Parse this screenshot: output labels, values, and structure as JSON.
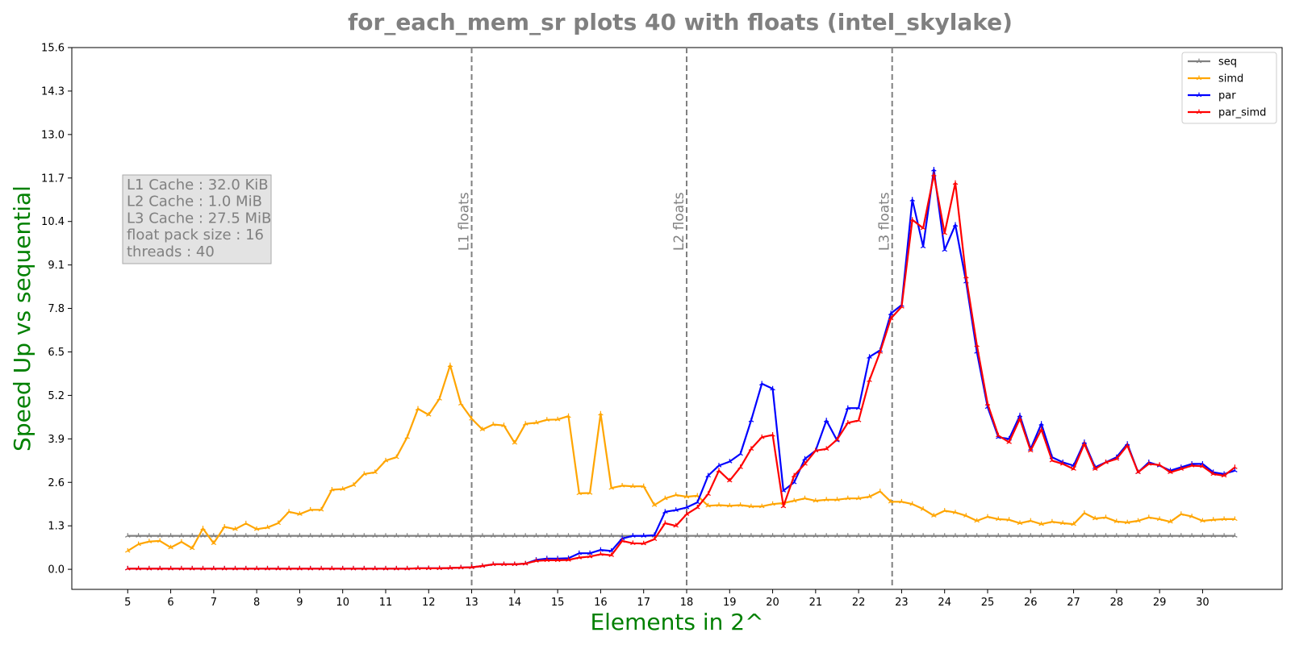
{
  "chart_data": {
    "type": "line",
    "title": "for_each_mem_sr plots 40 with floats  (intel_skylake)",
    "xlabel": "Elements in 2^",
    "ylabel": "Speed Up vs sequential",
    "xlim": [
      3.7,
      31.85
    ],
    "ylim": [
      -0.6,
      15.6
    ],
    "xticks": [
      5,
      6,
      7,
      8,
      9,
      10,
      11,
      12,
      13,
      14,
      15,
      16,
      17,
      18,
      19,
      20,
      21,
      22,
      23,
      24,
      25,
      26,
      27,
      28,
      29,
      30
    ],
    "yticks": [
      0.0,
      1.3,
      2.6,
      3.9,
      5.2,
      6.5,
      7.8,
      9.1,
      10.4,
      11.7,
      13.0,
      14.3,
      15.6
    ],
    "ytick_labels": [
      "0.0",
      "1.3",
      "2.6",
      "3.9",
      "5.2",
      "6.5",
      "7.8",
      "9.1",
      "10.4",
      "11.7",
      "13.0",
      "14.3",
      "15.6"
    ],
    "grid": false,
    "legend_position": "top-right",
    "x": [
      5.0,
      5.25,
      5.5,
      5.75,
      6.0,
      6.25,
      6.5,
      6.75,
      7.0,
      7.25,
      7.5,
      7.75,
      8.0,
      8.25,
      8.5,
      8.75,
      9.0,
      9.25,
      9.5,
      9.75,
      10.0,
      10.25,
      10.5,
      10.75,
      11.0,
      11.25,
      11.5,
      11.75,
      12.0,
      12.25,
      12.5,
      12.75,
      13.0,
      13.25,
      13.5,
      13.75,
      14.0,
      14.25,
      14.5,
      14.75,
      15.0,
      15.25,
      15.5,
      15.75,
      16.0,
      16.25,
      16.5,
      16.75,
      17.0,
      17.25,
      17.5,
      17.75,
      18.0,
      18.25,
      18.5,
      18.75,
      19.0,
      19.25,
      19.5,
      19.75,
      20.0,
      20.25,
      20.5,
      20.75,
      21.0,
      21.25,
      21.5,
      21.75,
      22.0,
      22.25,
      22.5,
      22.75,
      23.0,
      23.25,
      23.5,
      23.75,
      24.0,
      24.25,
      24.5,
      24.75,
      25.0,
      25.25,
      25.5,
      25.75,
      26.0,
      26.25,
      26.5,
      26.75,
      27.0,
      27.25,
      27.5,
      27.75,
      28.0,
      28.25,
      28.5,
      28.75,
      29.0,
      29.25,
      29.5,
      29.75,
      30.0,
      30.25,
      30.5,
      30.75
    ],
    "series": [
      {
        "name": "seq",
        "color": "#808080",
        "values": [
          1.0,
          1.0,
          1.0,
          1.0,
          1.0,
          1.0,
          1.0,
          1.0,
          1.0,
          1.0,
          1.0,
          1.0,
          1.0,
          1.0,
          1.0,
          1.0,
          1.0,
          1.0,
          1.0,
          1.0,
          1.0,
          1.0,
          1.0,
          1.0,
          1.0,
          1.0,
          1.0,
          1.0,
          1.0,
          1.0,
          1.0,
          1.0,
          1.0,
          1.0,
          1.0,
          1.0,
          1.0,
          1.0,
          1.0,
          1.0,
          1.0,
          1.0,
          1.0,
          1.0,
          1.0,
          1.0,
          1.0,
          1.0,
          1.0,
          1.0,
          1.0,
          1.0,
          1.0,
          1.0,
          1.0,
          1.0,
          1.0,
          1.0,
          1.0,
          1.0,
          1.0,
          1.0,
          1.0,
          1.0,
          1.0,
          1.0,
          1.0,
          1.0,
          1.0,
          1.0,
          1.0,
          1.0,
          1.0,
          1.0,
          1.0,
          1.0,
          1.0,
          1.0,
          1.0,
          1.0,
          1.0,
          1.0,
          1.0,
          1.0,
          1.0,
          1.0,
          1.0,
          1.0,
          1.0,
          1.0,
          1.0,
          1.0,
          1.0,
          1.0,
          1.0,
          1.0,
          1.0,
          1.0,
          1.0,
          1.0,
          1.0,
          1.0,
          1.0,
          1.0
        ]
      },
      {
        "name": "simd",
        "color": "#FFA500",
        "values": [
          0.55,
          0.75,
          0.83,
          0.85,
          0.65,
          0.82,
          0.63,
          1.22,
          0.78,
          1.27,
          1.2,
          1.37,
          1.2,
          1.25,
          1.38,
          1.72,
          1.65,
          1.78,
          1.78,
          2.38,
          2.4,
          2.52,
          2.85,
          2.9,
          3.25,
          3.35,
          3.95,
          4.8,
          4.62,
          5.1,
          6.1,
          4.95,
          4.5,
          4.18,
          4.33,
          4.3,
          3.78,
          4.35,
          4.38,
          4.47,
          4.48,
          4.58,
          2.27,
          2.28,
          4.65,
          2.43,
          2.5,
          2.48,
          2.48,
          1.92,
          2.12,
          2.22,
          2.17,
          2.2,
          1.9,
          1.92,
          1.9,
          1.92,
          1.88,
          1.88,
          1.95,
          1.98,
          2.05,
          2.12,
          2.05,
          2.08,
          2.08,
          2.12,
          2.12,
          2.17,
          2.33,
          2.02,
          2.02,
          1.95,
          1.8,
          1.6,
          1.75,
          1.7,
          1.6,
          1.45,
          1.57,
          1.5,
          1.48,
          1.38,
          1.45,
          1.35,
          1.42,
          1.38,
          1.35,
          1.68,
          1.52,
          1.55,
          1.43,
          1.4,
          1.45,
          1.55,
          1.5,
          1.42,
          1.65,
          1.58,
          1.45,
          1.48,
          1.5,
          1.5
        ]
      },
      {
        "name": "par",
        "color": "#0000FF",
        "values": [
          0.02,
          0.02,
          0.02,
          0.02,
          0.02,
          0.02,
          0.02,
          0.02,
          0.02,
          0.02,
          0.02,
          0.02,
          0.02,
          0.02,
          0.02,
          0.02,
          0.02,
          0.02,
          0.02,
          0.02,
          0.02,
          0.02,
          0.02,
          0.02,
          0.02,
          0.02,
          0.02,
          0.03,
          0.03,
          0.03,
          0.04,
          0.05,
          0.06,
          0.1,
          0.15,
          0.15,
          0.15,
          0.17,
          0.28,
          0.32,
          0.32,
          0.33,
          0.48,
          0.48,
          0.58,
          0.55,
          0.92,
          1.0,
          1.0,
          1.02,
          1.72,
          1.77,
          1.85,
          2.0,
          2.8,
          3.1,
          3.22,
          3.45,
          4.45,
          5.55,
          5.4,
          2.35,
          2.6,
          3.3,
          3.55,
          4.45,
          3.85,
          4.82,
          4.82,
          6.35,
          6.55,
          7.65,
          7.9,
          11.05,
          9.65,
          11.95,
          9.55,
          10.3,
          8.6,
          6.5,
          4.85,
          3.95,
          3.9,
          4.6,
          3.6,
          4.35,
          3.35,
          3.2,
          3.1,
          3.8,
          3.05,
          3.2,
          3.35,
          3.75,
          2.9,
          3.2,
          3.1,
          2.95,
          3.05,
          3.15,
          3.15,
          2.9,
          2.85,
          2.95
        ]
      },
      {
        "name": "par_simd",
        "color": "#FF0000",
        "values": [
          0.02,
          0.02,
          0.02,
          0.02,
          0.02,
          0.02,
          0.02,
          0.02,
          0.02,
          0.02,
          0.02,
          0.02,
          0.02,
          0.02,
          0.02,
          0.02,
          0.02,
          0.02,
          0.02,
          0.02,
          0.02,
          0.02,
          0.02,
          0.02,
          0.02,
          0.02,
          0.02,
          0.03,
          0.03,
          0.03,
          0.04,
          0.05,
          0.06,
          0.1,
          0.15,
          0.15,
          0.15,
          0.17,
          0.25,
          0.27,
          0.27,
          0.28,
          0.35,
          0.38,
          0.45,
          0.42,
          0.85,
          0.78,
          0.77,
          0.9,
          1.38,
          1.3,
          1.65,
          1.85,
          2.25,
          2.95,
          2.65,
          3.05,
          3.6,
          3.95,
          4.02,
          1.88,
          2.8,
          3.15,
          3.55,
          3.6,
          3.88,
          4.38,
          4.45,
          5.65,
          6.5,
          7.5,
          7.85,
          10.45,
          10.2,
          11.8,
          10.05,
          11.55,
          8.75,
          6.7,
          4.95,
          4.0,
          3.8,
          4.5,
          3.55,
          4.18,
          3.25,
          3.15,
          3.0,
          3.75,
          3.0,
          3.2,
          3.3,
          3.7,
          2.9,
          3.15,
          3.12,
          2.9,
          3.0,
          3.1,
          3.08,
          2.85,
          2.8,
          3.05
        ]
      }
    ],
    "vlines": [
      {
        "x": 13.0,
        "label": "L1 floats"
      },
      {
        "x": 18.0,
        "label": "L2 floats"
      },
      {
        "x": 22.78,
        "label": "L3 floats"
      }
    ],
    "info_box": [
      "L1 Cache : 32.0 KiB",
      "L2 Cache : 1.0 MiB",
      "L3 Cache : 27.5 MiB",
      "float pack size : 16",
      "threads : 40"
    ]
  }
}
